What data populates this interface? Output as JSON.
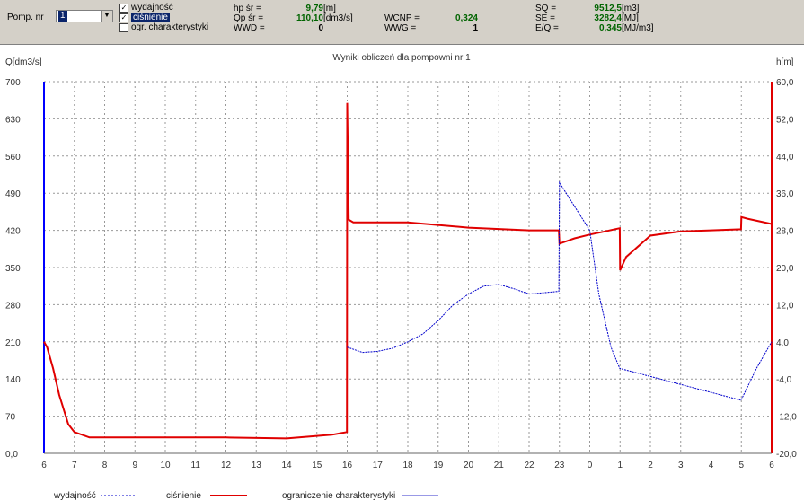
{
  "toolbar": {
    "pump_label": "Pomp. nr",
    "pump_value": "1",
    "checkbox_wydajnosc": "wydajność",
    "checkbox_cisnienie": "ciśnienie",
    "checkbox_ogr": "ogr. charakterystyki",
    "hp_label": "hp śr =",
    "hp_value": "9,79",
    "hp_unit": "[m]",
    "qp_label": "Qp śr =",
    "qp_value": "110,10",
    "qp_unit": "[dm3/s]",
    "wwd_label": "WWD =",
    "wwd_value": "0",
    "wcnp_label": "WCNP =",
    "wcnp_value": "0,324",
    "wwg_label": "WWG =",
    "wwg_value": "1",
    "sq_label": "SQ =",
    "sq_value": "9512,5",
    "sq_unit": "[m3]",
    "se_label": "SE =",
    "se_value": "3282,4",
    "se_unit": "[MJ]",
    "eq_label": "E/Q =",
    "eq_value": "0,345",
    "eq_unit": "[MJ/m3]"
  },
  "chart_data": {
    "type": "line",
    "title": "Wyniki obliczeń dla pompowni nr 1",
    "ylabel_left": "Q[dm3/s]",
    "ylabel_right": "h[m]",
    "x_ticks": [
      "6",
      "7",
      "8",
      "9",
      "10",
      "11",
      "12",
      "13",
      "14",
      "15",
      "16",
      "17",
      "18",
      "19",
      "20",
      "21",
      "22",
      "23",
      "0",
      "1",
      "2",
      "3",
      "4",
      "5",
      "6"
    ],
    "y_left_ticks": [
      "0,0",
      "70",
      "140",
      "210",
      "280",
      "350",
      "420",
      "490",
      "560",
      "630",
      "700"
    ],
    "y_left_lim": [
      0,
      700
    ],
    "y_right_ticks": [
      "-20,0",
      "-12,0",
      "-4,0",
      "4,0",
      "12,0",
      "20,0",
      "28,0",
      "36,0",
      "44,0",
      "52,0",
      "60,0"
    ],
    "y_right_lim": [
      -20,
      60
    ],
    "grid": true,
    "legend": [
      "wydajność",
      "ciśnienie",
      "ograniczenie charakterystyki"
    ],
    "colors": {
      "wydajnosc": "#0000cc",
      "cisnienie": "#e00000",
      "ograniczenie": "#3333cc",
      "grid": "#999999"
    },
    "series": [
      {
        "name": "ciśnienie",
        "axis": "left",
        "x": [
          0,
          0.1,
          0.3,
          0.5,
          0.8,
          1.0,
          1.5,
          2,
          4,
          6,
          8,
          9.5,
          9.99,
          10.0,
          10.05,
          10.2,
          12,
          14,
          16,
          16.98,
          17.0,
          17.5,
          18,
          18.5,
          18.99,
          19.0,
          19.2,
          20,
          21,
          22,
          22.99,
          23.0,
          23.2,
          24
        ],
        "y": [
          210,
          200,
          160,
          110,
          55,
          40,
          30,
          30,
          30,
          30,
          28,
          35,
          40,
          660,
          440,
          435,
          435,
          425,
          420,
          420,
          395,
          405,
          412,
          418,
          424,
          345,
          370,
          410,
          418,
          420,
          422,
          445,
          442,
          432
        ]
      },
      {
        "name": "wydajność",
        "axis": "left",
        "x": [
          10.0,
          10.5,
          11,
          11.5,
          12,
          12.5,
          13,
          13.5,
          14,
          14.5,
          15,
          15.5,
          16,
          16.98,
          17.0,
          18,
          18.3,
          18.7,
          18.99,
          22.99,
          23.5,
          24
        ],
        "y": [
          200,
          190,
          192,
          198,
          210,
          225,
          250,
          280,
          300,
          315,
          318,
          310,
          300,
          305,
          510,
          420,
          300,
          200,
          160,
          100,
          160,
          210
        ]
      }
    ]
  }
}
